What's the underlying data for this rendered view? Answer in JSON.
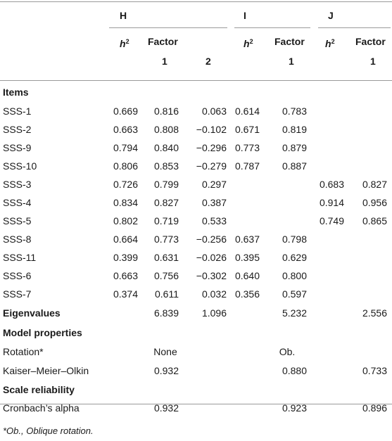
{
  "groups": {
    "H": "H",
    "I": "I",
    "J": "J"
  },
  "subheaders": {
    "h2_base": "h",
    "h2_sup": "2",
    "factor": "Factor",
    "f1": "1",
    "f2": "2"
  },
  "sections": {
    "items": "Items",
    "eigenvalues": "Eigenvalues",
    "model_properties": "Model properties",
    "scale_reliability": "Scale reliability"
  },
  "item_rows": [
    {
      "label": "SSS-1",
      "h_h2": "0.669",
      "h_f1": "0.816",
      "h_f2": "0.063",
      "i_h2": "0.614",
      "i_f1": "0.783",
      "j_h2": "",
      "j_f1": ""
    },
    {
      "label": "SSS-2",
      "h_h2": "0.663",
      "h_f1": "0.808",
      "h_f2": "−0.102",
      "i_h2": "0.671",
      "i_f1": "0.819",
      "j_h2": "",
      "j_f1": ""
    },
    {
      "label": "SSS-9",
      "h_h2": "0.794",
      "h_f1": "0.840",
      "h_f2": "−0.296",
      "i_h2": "0.773",
      "i_f1": "0.879",
      "j_h2": "",
      "j_f1": ""
    },
    {
      "label": "SSS-10",
      "h_h2": "0.806",
      "h_f1": "0.853",
      "h_f2": "−0.279",
      "i_h2": "0.787",
      "i_f1": "0.887",
      "j_h2": "",
      "j_f1": ""
    },
    {
      "label": "SSS-3",
      "h_h2": "0.726",
      "h_f1": "0.799",
      "h_f2": "0.297",
      "i_h2": "",
      "i_f1": "",
      "j_h2": "0.683",
      "j_f1": "0.827"
    },
    {
      "label": "SSS-4",
      "h_h2": "0.834",
      "h_f1": "0.827",
      "h_f2": "0.387",
      "i_h2": "",
      "i_f1": "",
      "j_h2": "0.914",
      "j_f1": "0.956"
    },
    {
      "label": "SSS-5",
      "h_h2": "0.802",
      "h_f1": "0.719",
      "h_f2": "0.533",
      "i_h2": "",
      "i_f1": "",
      "j_h2": "0.749",
      "j_f1": "0.865"
    },
    {
      "label": "SSS-8",
      "h_h2": "0.664",
      "h_f1": "0.773",
      "h_f2": "−0.256",
      "i_h2": "0.637",
      "i_f1": "0.798",
      "j_h2": "",
      "j_f1": ""
    },
    {
      "label": "SSS-11",
      "h_h2": "0.399",
      "h_f1": "0.631",
      "h_f2": "−0.026",
      "i_h2": "0.395",
      "i_f1": "0.629",
      "j_h2": "",
      "j_f1": ""
    },
    {
      "label": "SSS-6",
      "h_h2": "0.663",
      "h_f1": "0.756",
      "h_f2": "−0.302",
      "i_h2": "0.640",
      "i_f1": "0.800",
      "j_h2": "",
      "j_f1": ""
    },
    {
      "label": "SSS-7",
      "h_h2": "0.374",
      "h_f1": "0.611",
      "h_f2": "0.032",
      "i_h2": "0.356",
      "i_f1": "0.597",
      "j_h2": "",
      "j_f1": ""
    }
  ],
  "eigenvalues": {
    "h_f1": "6.839",
    "h_f2": "1.096",
    "i_f1": "5.232",
    "j_f1": "2.556"
  },
  "rotation": {
    "label": "Rotation*",
    "h": "None",
    "i": "Ob."
  },
  "kmo": {
    "label": "Kaiser–Meier–Olkin",
    "h": "0.932",
    "i": "0.880",
    "j": "0.733"
  },
  "cronbach": {
    "label": "Cronbach’s alpha",
    "h": "0.932",
    "i": "0.923",
    "j": "0.896"
  },
  "footnote": "*Ob., Oblique rotation."
}
